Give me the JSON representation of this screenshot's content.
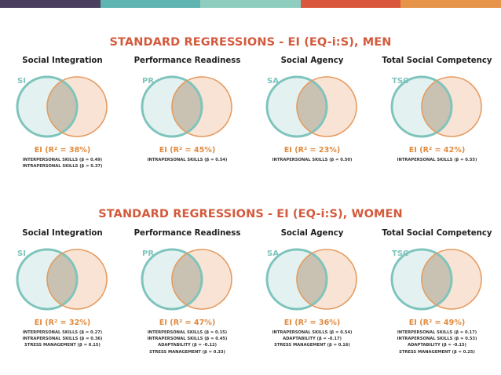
{
  "colors": {
    "topbar": [
      "#4a3f5f",
      "#5fb3b0",
      "#8fcdbf",
      "#d9573d",
      "#e6944a"
    ],
    "teal": "#7ec4bd",
    "orange": "#e59a5e",
    "overlap": "#c9c2b2",
    "title": "#d35a3c"
  },
  "sections": [
    {
      "title": "STANDARD REGRESSIONS - EI (EQ-i:S), MEN",
      "panels": [
        {
          "title": "Social Integration",
          "abbr": "SI",
          "ei": "EI (R² = 38%)",
          "predictors": [
            "INTERPERSONAL SKILLS (β = 0.49)",
            "INTRAPERSONAL SKILLS (β = 0.37)"
          ]
        },
        {
          "title": "Performance Readiness",
          "abbr": "PR",
          "ei": "EI (R² = 45%)",
          "predictors": [
            "INTRAPERSONAL SKILLS (β = 0.54)"
          ]
        },
        {
          "title": "Social Agency",
          "abbr": "SA",
          "ei": "EI (R² = 23%)",
          "predictors": [
            "INTRAPERSONAL SKILLS (β = 0.50)"
          ]
        },
        {
          "title": "Total Social Competency",
          "abbr": "TSC",
          "ei": "EI (R² = 42%)",
          "predictors": [
            "INTRAPERSONAL SKILLS (β = 0.55)"
          ]
        }
      ]
    },
    {
      "title": "STANDARD REGRESSIONS - EI (EQ-i:S), WOMEN",
      "panels": [
        {
          "title": "Social Integration",
          "abbr": "SI",
          "ei": "EI (R² = 32%)",
          "predictors": [
            "INTERPERSONAL SKILLS (β = 0.27)",
            "INTRAPERSONAL SKILLS (β = 0.36)",
            "STRESS MANAGEMENT (β = 0.15)"
          ]
        },
        {
          "title": "Performance Readiness",
          "abbr": "PR",
          "ei": "EI (R² = 47%)",
          "predictors": [
            "INTERPERSONAL SKILLS (β = 0.15)",
            "INTRAPERSONAL SKILLS (β = 0.45)",
            "ADAPTABILITY (β = -0.12)",
            "STRESS MANAGEMENT (β = 0.33)"
          ]
        },
        {
          "title": "Social Agency",
          "abbr": "SA",
          "ei": "EI (R² = 36%)",
          "predictors": [
            "INTRAPERSONAL SKILLS (β = 0.54)",
            "ADAPTABILITY (β = -0.17)",
            "STRESS MANAGEMENT (β = 0.16)"
          ]
        },
        {
          "title": "Total Social Competency",
          "abbr": "TSC",
          "ei": "EI (R² = 49%)",
          "predictors": [
            "INTERPERSONAL SKILLS (β = 0.17)",
            "INTRAPERSONAL SKILLS (β = 0.53)",
            "ADAPTABILITY (β = -0.15)",
            "STRESS MANAGEMENT (β = 0.25)"
          ]
        }
      ]
    }
  ]
}
